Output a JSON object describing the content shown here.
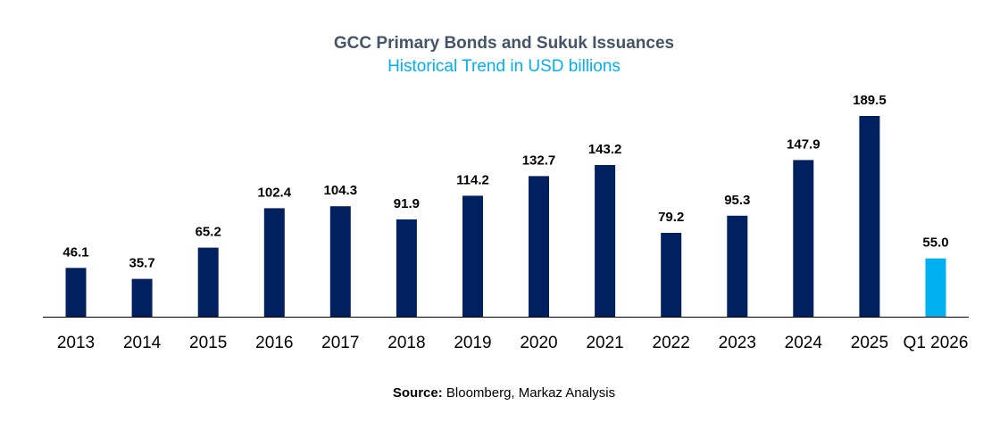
{
  "chart_data": {
    "type": "bar",
    "title": "GCC Primary Bonds and Sukuk Issuances",
    "subtitle": "Historical Trend in USD billions",
    "categories": [
      "2013",
      "2014",
      "2015",
      "2016",
      "2017",
      "2018",
      "2019",
      "2020",
      "2021",
      "2022",
      "2023",
      "2024",
      "2025",
      "Q1 2026"
    ],
    "values": [
      46.1,
      35.7,
      65.2,
      102.4,
      104.3,
      91.9,
      114.2,
      132.7,
      143.2,
      79.2,
      95.3,
      147.9,
      189.5,
      55.0
    ],
    "value_labels": [
      "46.1",
      "35.7",
      "65.2",
      "102.4",
      "104.3",
      "91.9",
      "114.2",
      "132.7",
      "143.2",
      "79.2",
      "95.3",
      "147.9",
      "189.5",
      "55.0"
    ],
    "highlight_category": "Q1 2026",
    "ylim": [
      0,
      189.5
    ],
    "grid": false,
    "legend": "none",
    "colors": {
      "bar": "#002060",
      "highlight": "#00b0f0",
      "axis": "#000000",
      "title": "#44546a",
      "subtitle": "#00b0f0"
    }
  },
  "source": {
    "label": "Source:",
    "text": " Bloomberg, Markaz Analysis"
  }
}
